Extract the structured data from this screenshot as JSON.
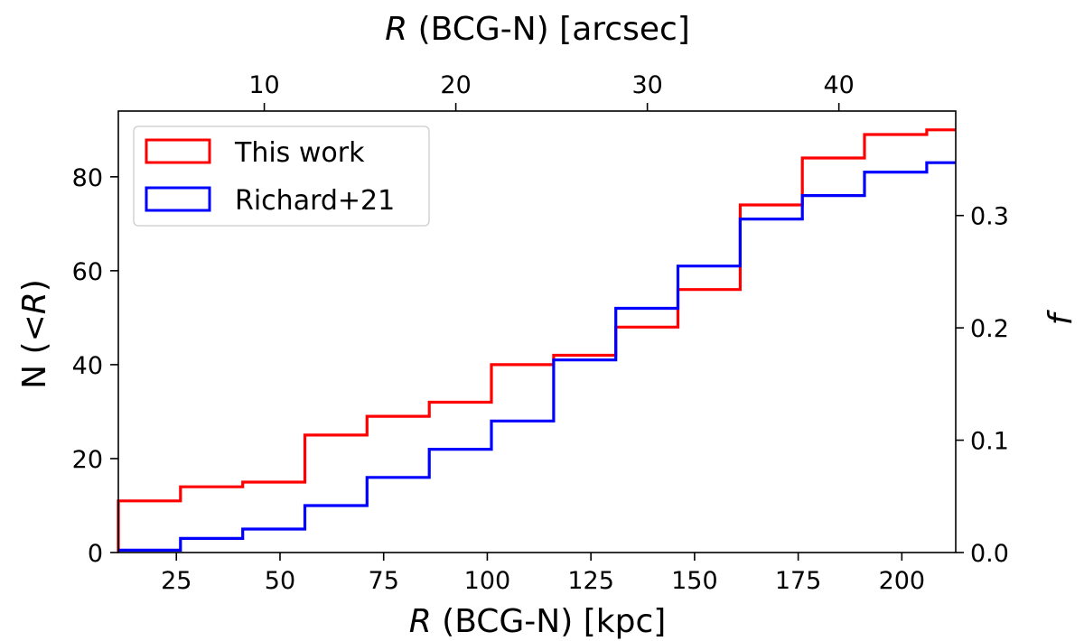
{
  "chart_data": {
    "type": "line",
    "drawstyle": "steps-post",
    "title": "",
    "xlabel": "R (BCG-N) [kpc]",
    "xlabel_top": "R (BCG-N) [arcsec]",
    "ylabel": "N (<R)",
    "ylabel_right": "f",
    "xlim": [
      11,
      213
    ],
    "ylim": [
      0,
      94
    ],
    "top_xlim": [
      2.38,
      46.1
    ],
    "right_ylim": [
      0.0,
      0.393
    ],
    "xticks": [
      25,
      50,
      75,
      100,
      125,
      150,
      175,
      200
    ],
    "yticks": [
      0,
      20,
      40,
      60,
      80
    ],
    "top_xticks": [
      10,
      20,
      30,
      40
    ],
    "right_yticks": [
      "0.0",
      "0.1",
      "0.2",
      "0.3"
    ],
    "grid": false,
    "legend_position": "upper-left",
    "series": [
      {
        "name": "This work",
        "color": "#ff0000",
        "x": [
          11,
          11,
          26,
          41,
          56,
          71,
          86,
          101,
          116,
          131,
          146,
          161,
          176,
          191,
          206,
          213
        ],
        "y": [
          0,
          11,
          14,
          15,
          25,
          29,
          32,
          40,
          42,
          48,
          56,
          74,
          84,
          89,
          90,
          90
        ]
      },
      {
        "name": "Richard+21",
        "color": "#0000ff",
        "x": [
          11,
          26,
          41,
          56,
          71,
          86,
          101,
          116,
          131,
          146,
          161,
          176,
          191,
          206,
          213
        ],
        "y": [
          0.5,
          3,
          5,
          10,
          16,
          22,
          28,
          41,
          52,
          61,
          71,
          76,
          81,
          83,
          83
        ]
      }
    ]
  }
}
